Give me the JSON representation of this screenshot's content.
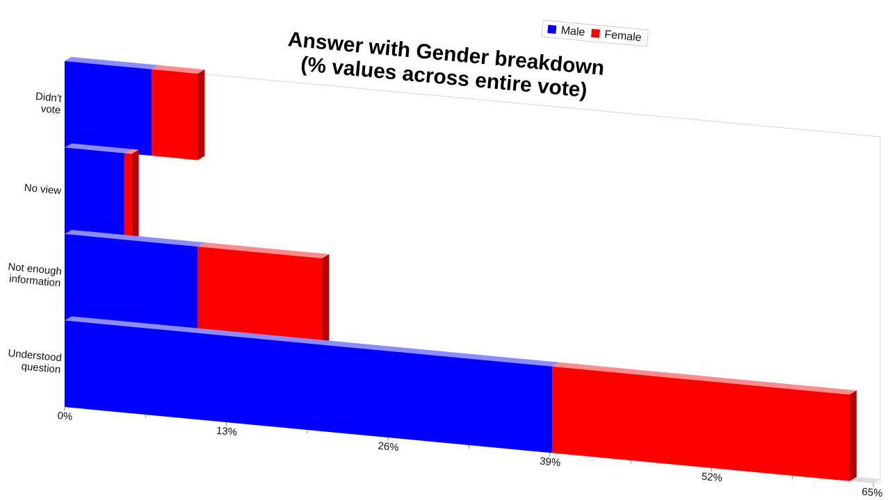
{
  "chart_data": {
    "type": "bar",
    "orientation": "horizontal",
    "stacked": true,
    "title_lines": [
      "Answer with Gender breakdown",
      "(% values across entire vote)"
    ],
    "categories": [
      "Didn't vote",
      "No view",
      "Not enough information",
      "Understood question"
    ],
    "category_label_lines": [
      [
        "Didn't",
        "vote"
      ],
      [
        "No view"
      ],
      [
        "Not enough",
        "information"
      ],
      [
        "Understood",
        "question"
      ]
    ],
    "series": [
      {
        "name": "Male",
        "color": "#0000ff",
        "values": [
          7.0,
          4.8,
          10.7,
          39.2
        ]
      },
      {
        "name": "Female",
        "color": "#ff0000",
        "values": [
          3.7,
          0.6,
          10.0,
          23.9
        ]
      }
    ],
    "xlim": [
      0,
      65
    ],
    "xticks": [
      "0%",
      "13%",
      "26%",
      "39%",
      "52%",
      "65%"
    ],
    "legend": {
      "position": "top-right",
      "items": [
        "Male",
        "Female"
      ]
    },
    "grid": false
  }
}
